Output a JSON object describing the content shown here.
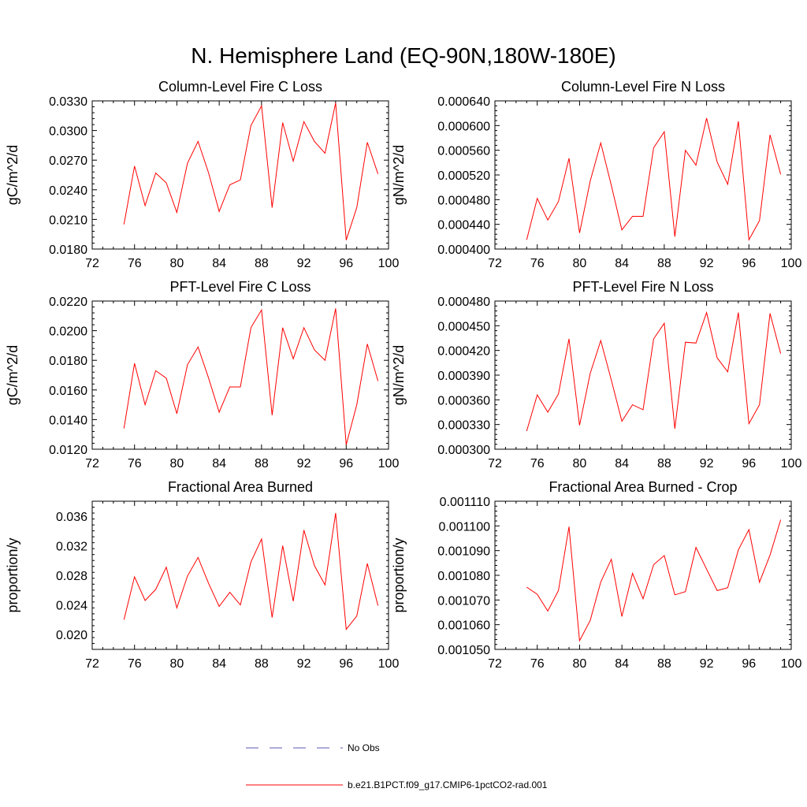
{
  "page_title": "N. Hemisphere Land (EQ-90N,180W-180E)",
  "legend": {
    "items": [
      {
        "label": "No Obs",
        "style": "dashed",
        "color": "#5a5ab4"
      },
      {
        "label": "b.e21.B1PCT.f09_g17.CMIP6-1pctCO2-rad.001",
        "style": "solid",
        "color": "#ff0000"
      }
    ]
  },
  "chart_data": [
    {
      "type": "line",
      "title": "Column-Level Fire C Loss",
      "xlabel": "",
      "ylabel": "gC/m^2/d",
      "xlim": [
        72,
        100
      ],
      "ylim": [
        0.018,
        0.033
      ],
      "xticks": [
        "72",
        "76",
        "80",
        "84",
        "88",
        "92",
        "96",
        "100"
      ],
      "yticks": [
        "0.0180",
        "0.0210",
        "0.0240",
        "0.0270",
        "0.0300",
        "0.0330"
      ],
      "series": [
        {
          "name": "b.e21.B1PCT.f09_g17.CMIP6-1pctCO2-rad.001",
          "color": "#ff0000",
          "x": [
            75,
            76,
            77,
            78,
            79,
            80,
            81,
            82,
            83,
            84,
            85,
            86,
            87,
            88,
            89,
            90,
            91,
            92,
            93,
            94,
            95,
            96,
            97,
            98,
            99
          ],
          "y": [
            0.0205,
            0.0264,
            0.0224,
            0.0257,
            0.0247,
            0.0217,
            0.0267,
            0.0289,
            0.0257,
            0.0218,
            0.0245,
            0.025,
            0.0305,
            0.0325,
            0.0222,
            0.0308,
            0.0269,
            0.0309,
            0.0289,
            0.0277,
            0.0328,
            0.0189,
            0.0222,
            0.0288,
            0.0256
          ]
        }
      ]
    },
    {
      "type": "line",
      "title": "Column-Level Fire N Loss",
      "xlabel": "",
      "ylabel": "gN/m^2/d",
      "xlim": [
        72,
        100
      ],
      "ylim": [
        0.0004,
        0.00064
      ],
      "xticks": [
        "72",
        "76",
        "80",
        "84",
        "88",
        "92",
        "96",
        "100"
      ],
      "yticks": [
        "0.000400",
        "0.000440",
        "0.000480",
        "0.000520",
        "0.000560",
        "0.000600",
        "0.000640"
      ],
      "series": [
        {
          "name": "b.e21.B1PCT.f09_g17.CMIP6-1pctCO2-rad.001",
          "color": "#ff0000",
          "x": [
            75,
            76,
            77,
            78,
            79,
            80,
            81,
            82,
            83,
            84,
            85,
            86,
            87,
            88,
            89,
            90,
            91,
            92,
            93,
            94,
            95,
            96,
            97,
            98,
            99
          ],
          "y": [
            0.000415,
            0.000482,
            0.000447,
            0.000477,
            0.000547,
            0.000426,
            0.00051,
            0.000572,
            0.000503,
            0.000431,
            0.000453,
            0.000453,
            0.000564,
            0.00059,
            0.00042,
            0.00056,
            0.000536,
            0.000612,
            0.000541,
            0.000505,
            0.000607,
            0.000415,
            0.000446,
            0.000585,
            0.000521
          ]
        }
      ]
    },
    {
      "type": "line",
      "title": "PFT-Level Fire C Loss",
      "xlabel": "",
      "ylabel": "gC/m^2/d",
      "xlim": [
        72,
        100
      ],
      "ylim": [
        0.012,
        0.022
      ],
      "xticks": [
        "72",
        "76",
        "80",
        "84",
        "88",
        "92",
        "96",
        "100"
      ],
      "yticks": [
        "0.0120",
        "0.0140",
        "0.0160",
        "0.0180",
        "0.0200",
        "0.0220"
      ],
      "series": [
        {
          "name": "b.e21.B1PCT.f09_g17.CMIP6-1pctCO2-rad.001",
          "color": "#ff0000",
          "x": [
            75,
            76,
            77,
            78,
            79,
            80,
            81,
            82,
            83,
            84,
            85,
            86,
            87,
            88,
            89,
            90,
            91,
            92,
            93,
            94,
            95,
            96,
            97,
            98,
            99
          ],
          "y": [
            0.0134,
            0.0178,
            0.015,
            0.0173,
            0.0168,
            0.0144,
            0.0177,
            0.0189,
            0.0168,
            0.0145,
            0.0162,
            0.0162,
            0.0202,
            0.0214,
            0.0143,
            0.0202,
            0.0181,
            0.0202,
            0.0187,
            0.018,
            0.0215,
            0.0123,
            0.015,
            0.0191,
            0.0166
          ]
        }
      ]
    },
    {
      "type": "line",
      "title": "PFT-Level Fire N Loss",
      "xlabel": "",
      "ylabel": "gN/m^2/d",
      "xlim": [
        72,
        100
      ],
      "ylim": [
        0.0003,
        0.00048
      ],
      "xticks": [
        "72",
        "76",
        "80",
        "84",
        "88",
        "92",
        "96",
        "100"
      ],
      "yticks": [
        "0.000300",
        "0.000330",
        "0.000360",
        "0.000390",
        "0.000420",
        "0.000450",
        "0.000480"
      ],
      "series": [
        {
          "name": "b.e21.B1PCT.f09_g17.CMIP6-1pctCO2-rad.001",
          "color": "#ff0000",
          "x": [
            75,
            76,
            77,
            78,
            79,
            80,
            81,
            82,
            83,
            84,
            85,
            86,
            87,
            88,
            89,
            90,
            91,
            92,
            93,
            94,
            95,
            96,
            97,
            98,
            99
          ],
          "y": [
            0.000322,
            0.000366,
            0.000345,
            0.000367,
            0.000434,
            0.000329,
            0.000392,
            0.000432,
            0.000384,
            0.000334,
            0.000354,
            0.000348,
            0.000434,
            0.000453,
            0.000325,
            0.00043,
            0.000429,
            0.000466,
            0.000411,
            0.000394,
            0.000466,
            0.000331,
            0.000354,
            0.000465,
            0.000416
          ]
        }
      ]
    },
    {
      "type": "line",
      "title": "Fractional Area Burned",
      "xlabel": "",
      "ylabel": "proportion/y",
      "xlim": [
        72,
        100
      ],
      "ylim": [
        0.018,
        0.038
      ],
      "xticks": [
        "72",
        "76",
        "80",
        "84",
        "88",
        "92",
        "96",
        "100"
      ],
      "yticks": [
        "0.020",
        "0.024",
        "0.028",
        "0.032",
        "0.036"
      ],
      "series": [
        {
          "name": "b.e21.B1PCT.f09_g17.CMIP6-1pctCO2-rad.001",
          "color": "#ff0000",
          "x": [
            75,
            76,
            77,
            78,
            79,
            80,
            81,
            82,
            83,
            84,
            85,
            86,
            87,
            88,
            89,
            90,
            91,
            92,
            93,
            94,
            95,
            96,
            97,
            98,
            99
          ],
          "y": [
            0.022,
            0.0278,
            0.0246,
            0.0261,
            0.0291,
            0.0236,
            0.0279,
            0.0304,
            0.0269,
            0.0238,
            0.0257,
            0.024,
            0.0298,
            0.0329,
            0.0223,
            0.032,
            0.0245,
            0.0341,
            0.0293,
            0.0267,
            0.0364,
            0.0207,
            0.0225,
            0.0296,
            0.0239
          ]
        }
      ]
    },
    {
      "type": "line",
      "title": "Fractional Area Burned - Crop",
      "xlabel": "",
      "ylabel": "proportion/y",
      "xlim": [
        72,
        100
      ],
      "ylim": [
        0.00105,
        0.00111
      ],
      "xticks": [
        "72",
        "76",
        "80",
        "84",
        "88",
        "92",
        "96",
        "100"
      ],
      "yticks": [
        "0.001050",
        "0.001060",
        "0.001070",
        "0.001080",
        "0.001090",
        "0.001100",
        "0.001110"
      ],
      "series": [
        {
          "name": "b.e21.B1PCT.f09_g17.CMIP6-1pctCO2-rad.001",
          "color": "#ff0000",
          "x": [
            75,
            76,
            77,
            78,
            79,
            80,
            81,
            82,
            83,
            84,
            85,
            86,
            87,
            88,
            89,
            90,
            91,
            92,
            93,
            94,
            95,
            96,
            97,
            98,
            99
          ],
          "y": [
            0.0010752,
            0.0010723,
            0.0010655,
            0.0010738,
            0.0010997,
            0.0010535,
            0.0010617,
            0.0010773,
            0.0010865,
            0.0010633,
            0.0010808,
            0.0010705,
            0.0010843,
            0.001088,
            0.0010721,
            0.0010734,
            0.0010913,
            0.0010825,
            0.0010738,
            0.001075,
            0.0010903,
            0.0010985,
            0.0010772,
            0.0010882,
            0.0011025
          ]
        }
      ]
    }
  ]
}
